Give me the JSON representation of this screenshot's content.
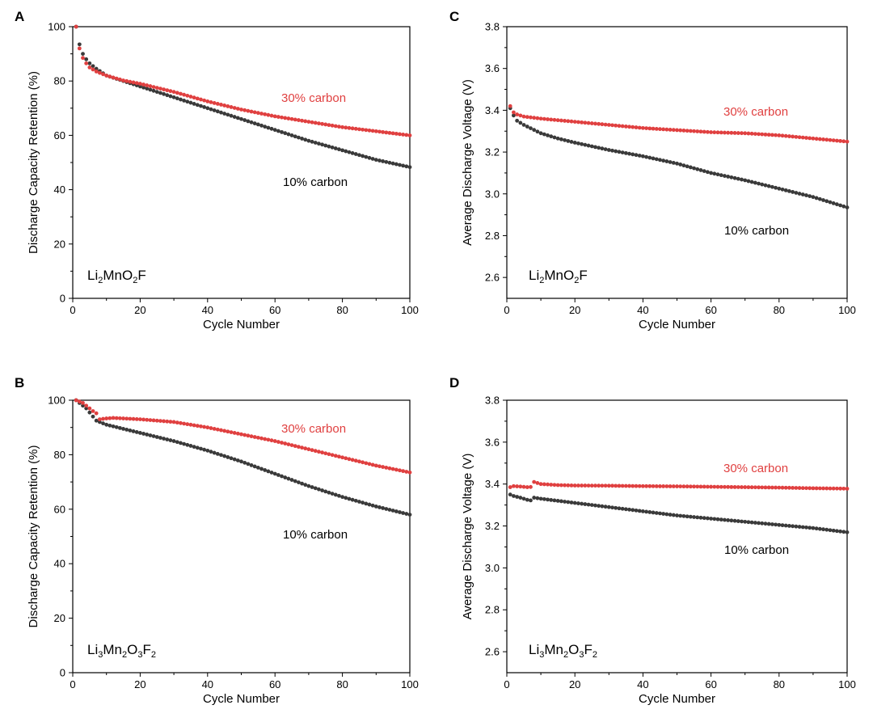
{
  "colors": {
    "red": "#e04040",
    "black": "#3a3a3a",
    "axis": "#000000"
  },
  "panels": [
    {
      "letter": "A",
      "label_parts": [
        {
          "t": "Li",
          "s": false
        },
        {
          "t": "2",
          "s": true
        },
        {
          "t": "MnO",
          "s": false
        },
        {
          "t": "2",
          "s": true
        },
        {
          "t": "F",
          "s": false
        }
      ]
    },
    {
      "letter": "C",
      "label_parts": [
        {
          "t": "Li",
          "s": false
        },
        {
          "t": "2",
          "s": true
        },
        {
          "t": "MnO",
          "s": false
        },
        {
          "t": "2",
          "s": true
        },
        {
          "t": "F",
          "s": false
        }
      ]
    },
    {
      "letter": "B",
      "label_parts": [
        {
          "t": "Li",
          "s": false
        },
        {
          "t": "3",
          "s": true
        },
        {
          "t": "Mn",
          "s": false
        },
        {
          "t": "2",
          "s": true
        },
        {
          "t": "O",
          "s": false
        },
        {
          "t": "3",
          "s": true
        },
        {
          "t": "F",
          "s": false
        },
        {
          "t": "2",
          "s": true
        }
      ]
    },
    {
      "letter": "D",
      "label_parts": [
        {
          "t": "Li",
          "s": false
        },
        {
          "t": "3",
          "s": true
        },
        {
          "t": "Mn",
          "s": false
        },
        {
          "t": "2",
          "s": true
        },
        {
          "t": "O",
          "s": false
        },
        {
          "t": "3",
          "s": true
        },
        {
          "t": "F",
          "s": false
        },
        {
          "t": "2",
          "s": true
        }
      ]
    }
  ],
  "chart_data": [
    {
      "type": "scatter",
      "panel": "A",
      "xlabel": "Cycle Number",
      "ylabel": "Discharge Capacity Retention (%)",
      "xlim": [
        0,
        100
      ],
      "ylim": [
        0,
        100
      ],
      "xticks": [
        0,
        20,
        40,
        60,
        80,
        100
      ],
      "yticks": [
        0,
        20,
        40,
        60,
        80,
        100
      ],
      "series": [
        {
          "name": "30% carbon",
          "color": "red",
          "points": [
            [
              1,
              100
            ],
            [
              2,
              92
            ],
            [
              3,
              88.5
            ],
            [
              4,
              86.5
            ],
            [
              5,
              85
            ],
            [
              7,
              83.5
            ],
            [
              10,
              82
            ],
            [
              15,
              80.2
            ],
            [
              20,
              79
            ],
            [
              25,
              77.5
            ],
            [
              30,
              76
            ],
            [
              40,
              72.5
            ],
            [
              50,
              69.5
            ],
            [
              60,
              67
            ],
            [
              70,
              65
            ],
            [
              80,
              63
            ],
            [
              90,
              61.5
            ],
            [
              100,
              60
            ]
          ]
        },
        {
          "name": "10% carbon",
          "color": "black",
          "points": [
            [
              1,
              100
            ],
            [
              2,
              93.5
            ],
            [
              3,
              90
            ],
            [
              4,
              88
            ],
            [
              5,
              86.5
            ],
            [
              7,
              84.5
            ],
            [
              10,
              82
            ],
            [
              15,
              80
            ],
            [
              20,
              78
            ],
            [
              25,
              76
            ],
            [
              30,
              74
            ],
            [
              40,
              70
            ],
            [
              50,
              66
            ],
            [
              60,
              62
            ],
            [
              70,
              58
            ],
            [
              80,
              54.5
            ],
            [
              90,
              51
            ],
            [
              100,
              48.3
            ]
          ]
        }
      ]
    },
    {
      "type": "scatter",
      "panel": "C",
      "xlabel": "Cycle Number",
      "ylabel": "Average Discharge Voltage (V)",
      "xlim": [
        0,
        100
      ],
      "ylim": [
        2.5,
        3.8
      ],
      "xticks": [
        0,
        20,
        40,
        60,
        80,
        100
      ],
      "yticks": [
        2.6,
        2.8,
        3.0,
        3.2,
        3.4,
        3.6,
        3.8
      ],
      "series": [
        {
          "name": "30% carbon",
          "color": "red",
          "points": [
            [
              1,
              3.42
            ],
            [
              2,
              3.39
            ],
            [
              3,
              3.38
            ],
            [
              5,
              3.37
            ],
            [
              10,
              3.36
            ],
            [
              20,
              3.345
            ],
            [
              30,
              3.33
            ],
            [
              40,
              3.315
            ],
            [
              50,
              3.305
            ],
            [
              60,
              3.295
            ],
            [
              70,
              3.29
            ],
            [
              80,
              3.28
            ],
            [
              90,
              3.265
            ],
            [
              100,
              3.25
            ]
          ]
        },
        {
          "name": "10% carbon",
          "color": "black",
          "points": [
            [
              1,
              3.41
            ],
            [
              2,
              3.375
            ],
            [
              3,
              3.35
            ],
            [
              5,
              3.33
            ],
            [
              10,
              3.29
            ],
            [
              15,
              3.265
            ],
            [
              20,
              3.245
            ],
            [
              30,
              3.21
            ],
            [
              40,
              3.18
            ],
            [
              50,
              3.145
            ],
            [
              60,
              3.1
            ],
            [
              70,
              3.065
            ],
            [
              80,
              3.025
            ],
            [
              90,
              2.985
            ],
            [
              100,
              2.935
            ]
          ]
        }
      ]
    },
    {
      "type": "scatter",
      "panel": "B",
      "xlabel": "Cycle Number",
      "ylabel": "Discharge Capacity Retention (%)",
      "xlim": [
        0,
        100
      ],
      "ylim": [
        0,
        100
      ],
      "xticks": [
        0,
        20,
        40,
        60,
        80,
        100
      ],
      "yticks": [
        0,
        20,
        40,
        60,
        80,
        100
      ],
      "series": [
        {
          "name": "30% carbon",
          "color": "red",
          "points": [
            [
              1,
              100
            ],
            [
              2,
              99.5
            ],
            [
              3,
              99
            ],
            [
              4,
              98
            ],
            [
              5,
              97
            ],
            [
              6,
              96
            ],
            [
              7,
              95.2
            ],
            [
              8,
              93
            ],
            [
              10,
              93.3
            ],
            [
              12,
              93.5
            ],
            [
              15,
              93.3
            ],
            [
              20,
              93
            ],
            [
              25,
              92.5
            ],
            [
              30,
              92
            ],
            [
              40,
              90
            ],
            [
              50,
              87.5
            ],
            [
              60,
              85
            ],
            [
              70,
              82
            ],
            [
              80,
              79
            ],
            [
              90,
              76
            ],
            [
              100,
              73.5
            ]
          ]
        },
        {
          "name": "10% carbon",
          "color": "black",
          "points": [
            [
              1,
              100
            ],
            [
              2,
              99
            ],
            [
              3,
              98
            ],
            [
              4,
              97
            ],
            [
              5,
              95.5
            ],
            [
              6,
              94
            ],
            [
              7,
              92.5
            ],
            [
              8,
              92
            ],
            [
              10,
              91
            ],
            [
              15,
              89.5
            ],
            [
              20,
              88
            ],
            [
              30,
              85
            ],
            [
              40,
              81.5
            ],
            [
              50,
              77.5
            ],
            [
              60,
              73
            ],
            [
              70,
              68.5
            ],
            [
              80,
              64.5
            ],
            [
              90,
              61
            ],
            [
              100,
              58
            ]
          ]
        }
      ]
    },
    {
      "type": "scatter",
      "panel": "D",
      "xlabel": "Cycle Number",
      "ylabel": "Average Discharge Voltage (V)",
      "xlim": [
        0,
        100
      ],
      "ylim": [
        2.5,
        3.8
      ],
      "xticks": [
        0,
        20,
        40,
        60,
        80,
        100
      ],
      "yticks": [
        2.6,
        2.8,
        3.0,
        3.2,
        3.4,
        3.6,
        3.8
      ],
      "series": [
        {
          "name": "30% carbon",
          "color": "red",
          "points": [
            [
              1,
              3.385
            ],
            [
              2,
              3.39
            ],
            [
              4,
              3.388
            ],
            [
              6,
              3.385
            ],
            [
              7,
              3.386
            ],
            [
              8,
              3.41
            ],
            [
              9,
              3.405
            ],
            [
              10,
              3.4
            ],
            [
              15,
              3.395
            ],
            [
              20,
              3.393
            ],
            [
              30,
              3.392
            ],
            [
              40,
              3.39
            ],
            [
              50,
              3.389
            ],
            [
              60,
              3.387
            ],
            [
              70,
              3.385
            ],
            [
              80,
              3.383
            ],
            [
              90,
              3.38
            ],
            [
              100,
              3.378
            ]
          ]
        },
        {
          "name": "10% carbon",
          "color": "black",
          "points": [
            [
              1,
              3.35
            ],
            [
              2,
              3.343
            ],
            [
              4,
              3.335
            ],
            [
              6,
              3.325
            ],
            [
              7,
              3.322
            ],
            [
              8,
              3.335
            ],
            [
              10,
              3.33
            ],
            [
              20,
              3.31
            ],
            [
              30,
              3.29
            ],
            [
              40,
              3.27
            ],
            [
              50,
              3.25
            ],
            [
              60,
              3.235
            ],
            [
              70,
              3.22
            ],
            [
              80,
              3.205
            ],
            [
              90,
              3.19
            ],
            [
              100,
              3.17
            ]
          ]
        }
      ]
    }
  ]
}
